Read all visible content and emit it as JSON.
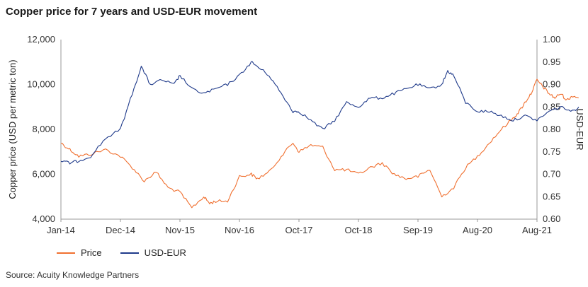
{
  "chart_data": {
    "type": "line",
    "title": "Copper price for 7 years and USD-EUR movement",
    "y_left_label": "Copper price (USD per metric ton)",
    "y_right_label": "USD-EUR",
    "y_left_range": [
      4000,
      12000
    ],
    "y_right_range": [
      0.6,
      1.0
    ],
    "y_left_ticks": [
      "4,000",
      "6,000",
      "8,000",
      "10,000",
      "12,000"
    ],
    "y_right_ticks": [
      "0.60",
      "0.65",
      "0.70",
      "0.75",
      "0.80",
      "0.85",
      "0.90",
      "0.95",
      "1.00"
    ],
    "x_ticks": [
      "Jan-14",
      "Dec-14",
      "Nov-15",
      "Nov-16",
      "Oct-17",
      "Oct-18",
      "Sep-19",
      "Aug-20",
      "Aug-21"
    ],
    "grid": false,
    "legend_position": "bottom-left",
    "series": [
      {
        "name": "Price",
        "axis": "left",
        "color": "#f07030",
        "x": [
          0,
          0.15,
          0.3,
          0.5,
          0.75,
          1.0,
          1.2,
          1.4,
          1.6,
          1.8,
          2.0,
          2.2,
          2.4,
          2.5,
          2.6,
          2.8,
          3.0,
          3.2,
          3.3,
          3.5,
          3.7,
          3.9,
          4.0,
          4.2,
          4.4,
          4.6,
          4.8,
          5.0,
          5.2,
          5.4,
          5.6,
          5.8,
          6.0,
          6.2,
          6.4,
          6.6,
          6.8,
          7.0,
          7.2,
          7.4,
          7.6,
          7.7,
          7.8,
          7.9,
          8.0,
          8.1,
          8.2,
          8.3,
          8.4,
          8.5,
          8.6,
          8.7
        ],
        "values": [
          7400,
          7100,
          6800,
          6900,
          7100,
          6800,
          6300,
          5700,
          6100,
          5400,
          5200,
          4500,
          5000,
          4700,
          4800,
          4800,
          5900,
          6000,
          5800,
          6100,
          6800,
          7400,
          7000,
          7300,
          7200,
          6200,
          6200,
          6000,
          6300,
          6500,
          6000,
          5800,
          5900,
          6200,
          5000,
          5400,
          6300,
          6800,
          7400,
          8000,
          8500,
          8800,
          9200,
          9600,
          10200,
          9900,
          9600,
          9400,
          9600,
          9300,
          9500,
          9400
        ]
      },
      {
        "name": "USD-EUR",
        "axis": "right",
        "color": "#1f3a8a",
        "x": [
          0,
          0.15,
          0.3,
          0.5,
          0.75,
          1.0,
          1.2,
          1.35,
          1.5,
          1.7,
          1.9,
          2.0,
          2.2,
          2.4,
          2.6,
          2.8,
          3.0,
          3.2,
          3.3,
          3.5,
          3.7,
          3.9,
          4.0,
          4.2,
          4.4,
          4.6,
          4.8,
          5.0,
          5.2,
          5.4,
          5.6,
          5.8,
          6.0,
          6.2,
          6.4,
          6.5,
          6.6,
          6.8,
          7.0,
          7.2,
          7.4,
          7.6,
          7.8,
          8.0,
          8.2,
          8.4,
          8.6,
          8.7
        ],
        "values": [
          0.73,
          0.725,
          0.73,
          0.74,
          0.78,
          0.8,
          0.88,
          0.94,
          0.9,
          0.91,
          0.9,
          0.92,
          0.89,
          0.88,
          0.89,
          0.9,
          0.92,
          0.95,
          0.94,
          0.92,
          0.88,
          0.84,
          0.84,
          0.82,
          0.8,
          0.82,
          0.86,
          0.85,
          0.87,
          0.87,
          0.88,
          0.89,
          0.9,
          0.89,
          0.9,
          0.93,
          0.92,
          0.86,
          0.84,
          0.84,
          0.83,
          0.82,
          0.83,
          0.82,
          0.84,
          0.85,
          0.84,
          0.85
        ]
      }
    ]
  },
  "source": "Source: Acuity Knowledge Partners"
}
